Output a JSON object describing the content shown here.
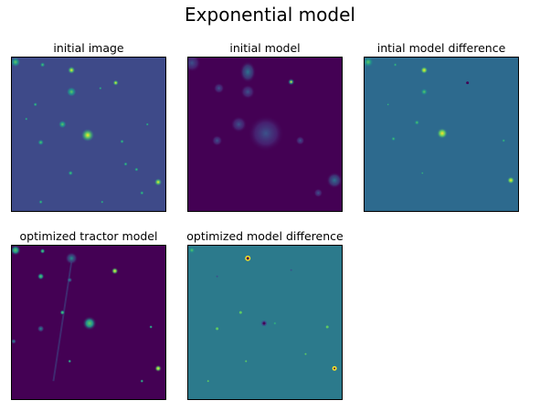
{
  "figure": {
    "title": "Exponential model",
    "panels": [
      {
        "title": "initial image",
        "background": "#3e4a89"
      },
      {
        "title": "initial model",
        "background": "#440154"
      },
      {
        "title": "intial model difference",
        "background": "#2d6a8e"
      },
      {
        "title": "optimized tractor model",
        "background": "#440154"
      },
      {
        "title": "optimized model difference",
        "background": "#2c7a8c"
      }
    ]
  },
  "colormap": {
    "name": "viridis",
    "stops": [
      "#440154",
      "#3b528b",
      "#21918c",
      "#5ec962",
      "#fde725"
    ]
  }
}
